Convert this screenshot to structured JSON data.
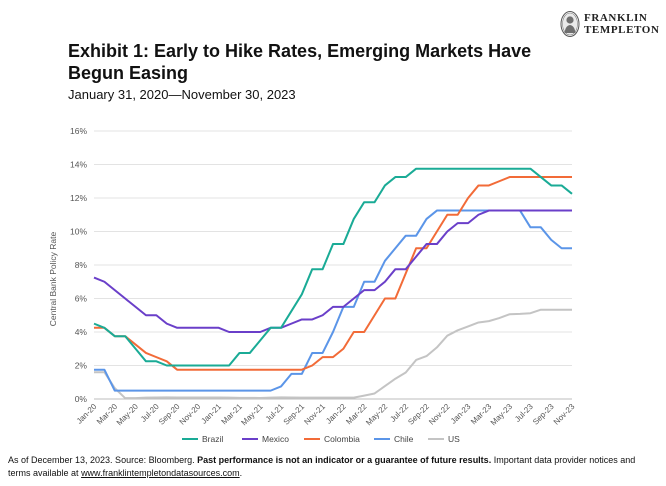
{
  "logo": {
    "line1": "FRANKLIN",
    "line2": "TEMPLETON"
  },
  "title": "Exhibit 1: Early to Hike Rates, Emerging Markets Have Begun Easing",
  "subtitle": "January 31, 2020—November 30, 2023",
  "footer": {
    "prefix": "As of December 13, 2023. Source: Bloomberg.",
    "bold": "Past performance is not an indicator or a guarantee of future results.",
    "suffix": "Important data provider notices and terms available at",
    "link": "www.franklintempletondatasources.com",
    "end": "."
  },
  "chart_data": {
    "type": "line",
    "title": "",
    "xlabel": "",
    "ylabel": "Central Bank Policy Rate",
    "ylim": [
      0,
      16
    ],
    "yticks": [
      "0%",
      "2%",
      "4%",
      "6%",
      "8%",
      "10%",
      "12%",
      "14%",
      "16%"
    ],
    "grid": "horizontal",
    "legend": "bottom",
    "x": [
      "Jan-20",
      "Feb-20",
      "Mar-20",
      "Apr-20",
      "May-20",
      "Jun-20",
      "Jul-20",
      "Aug-20",
      "Sep-20",
      "Oct-20",
      "Nov-20",
      "Dec-20",
      "Jan-21",
      "Feb-21",
      "Mar-21",
      "Apr-21",
      "May-21",
      "Jun-21",
      "Jul-21",
      "Aug-21",
      "Sep-21",
      "Oct-21",
      "Nov-21",
      "Dec-21",
      "Jan-22",
      "Feb-22",
      "Mar-22",
      "Apr-22",
      "May-22",
      "Jun-22",
      "Jul-22",
      "Aug-22",
      "Sep-22",
      "Oct-22",
      "Nov-22",
      "Dec-22",
      "Jan-23",
      "Feb-23",
      "Mar-23",
      "Apr-23",
      "May-23",
      "Jun-23",
      "Jul-23",
      "Aug-23",
      "Sep-23",
      "Oct-23",
      "Nov-23"
    ],
    "xtick_labels": [
      "Jan-20",
      "Mar-20",
      "May-20",
      "Jul-20",
      "Sep-20",
      "Nov-20",
      "Jan-21",
      "Mar-21",
      "May-21",
      "Jul-21",
      "Sep-21",
      "Nov-21",
      "Jan-22",
      "Mar-22",
      "May-22",
      "Jul-22",
      "Sep-22",
      "Nov-22",
      "Jan-23",
      "Mar-23",
      "May-23",
      "Jul-23",
      "Sep-23",
      "Nov-23"
    ],
    "series": [
      {
        "name": "Brazil",
        "color": "#1aab96",
        "values": [
          4.5,
          4.25,
          3.75,
          3.75,
          3.0,
          2.25,
          2.25,
          2.0,
          2.0,
          2.0,
          2.0,
          2.0,
          2.0,
          2.0,
          2.75,
          2.75,
          3.5,
          4.25,
          4.25,
          5.25,
          6.25,
          7.75,
          7.75,
          9.25,
          9.25,
          10.75,
          11.75,
          11.75,
          12.75,
          13.25,
          13.25,
          13.75,
          13.75,
          13.75,
          13.75,
          13.75,
          13.75,
          13.75,
          13.75,
          13.75,
          13.75,
          13.75,
          13.75,
          13.25,
          12.75,
          12.75,
          12.25
        ]
      },
      {
        "name": "Mexico",
        "color": "#6a3fc9",
        "values": [
          7.25,
          7.0,
          6.5,
          6.0,
          5.5,
          5.0,
          5.0,
          4.5,
          4.25,
          4.25,
          4.25,
          4.25,
          4.25,
          4.0,
          4.0,
          4.0,
          4.0,
          4.25,
          4.25,
          4.5,
          4.75,
          4.75,
          5.0,
          5.5,
          5.5,
          6.0,
          6.5,
          6.5,
          7.0,
          7.75,
          7.75,
          8.5,
          9.25,
          9.25,
          10.0,
          10.5,
          10.5,
          11.0,
          11.25,
          11.25,
          11.25,
          11.25,
          11.25,
          11.25,
          11.25,
          11.25,
          11.25
        ]
      },
      {
        "name": "Colombia",
        "color": "#f26b38",
        "values": [
          4.25,
          4.25,
          3.75,
          3.75,
          3.25,
          2.75,
          2.5,
          2.25,
          1.75,
          1.75,
          1.75,
          1.75,
          1.75,
          1.75,
          1.75,
          1.75,
          1.75,
          1.75,
          1.75,
          1.75,
          1.75,
          2.0,
          2.5,
          2.5,
          3.0,
          4.0,
          4.0,
          5.0,
          6.0,
          6.0,
          7.5,
          9.0,
          9.0,
          10.0,
          11.0,
          11.0,
          12.0,
          12.75,
          12.75,
          13.0,
          13.25,
          13.25,
          13.25,
          13.25,
          13.25,
          13.25,
          13.25
        ]
      },
      {
        "name": "Chile",
        "color": "#5b95e8",
        "values": [
          1.75,
          1.75,
          0.5,
          0.5,
          0.5,
          0.5,
          0.5,
          0.5,
          0.5,
          0.5,
          0.5,
          0.5,
          0.5,
          0.5,
          0.5,
          0.5,
          0.5,
          0.5,
          0.75,
          1.5,
          1.5,
          2.75,
          2.75,
          4.0,
          5.5,
          5.5,
          7.0,
          7.0,
          8.25,
          9.0,
          9.75,
          9.75,
          10.75,
          11.25,
          11.25,
          11.25,
          11.25,
          11.25,
          11.25,
          11.25,
          11.25,
          11.25,
          10.25,
          10.25,
          9.5,
          9.0,
          9.0
        ]
      },
      {
        "name": "US",
        "color": "#c4c4c4",
        "values": [
          1.6,
          1.6,
          0.65,
          0.05,
          0.05,
          0.08,
          0.09,
          0.1,
          0.09,
          0.09,
          0.09,
          0.09,
          0.09,
          0.08,
          0.07,
          0.07,
          0.06,
          0.08,
          0.1,
          0.09,
          0.08,
          0.08,
          0.08,
          0.08,
          0.08,
          0.08,
          0.2,
          0.33,
          0.77,
          1.21,
          1.58,
          2.33,
          2.56,
          3.08,
          3.78,
          4.1,
          4.33,
          4.57,
          4.65,
          4.83,
          5.06,
          5.08,
          5.12,
          5.33,
          5.33,
          5.33,
          5.33
        ]
      }
    ]
  }
}
